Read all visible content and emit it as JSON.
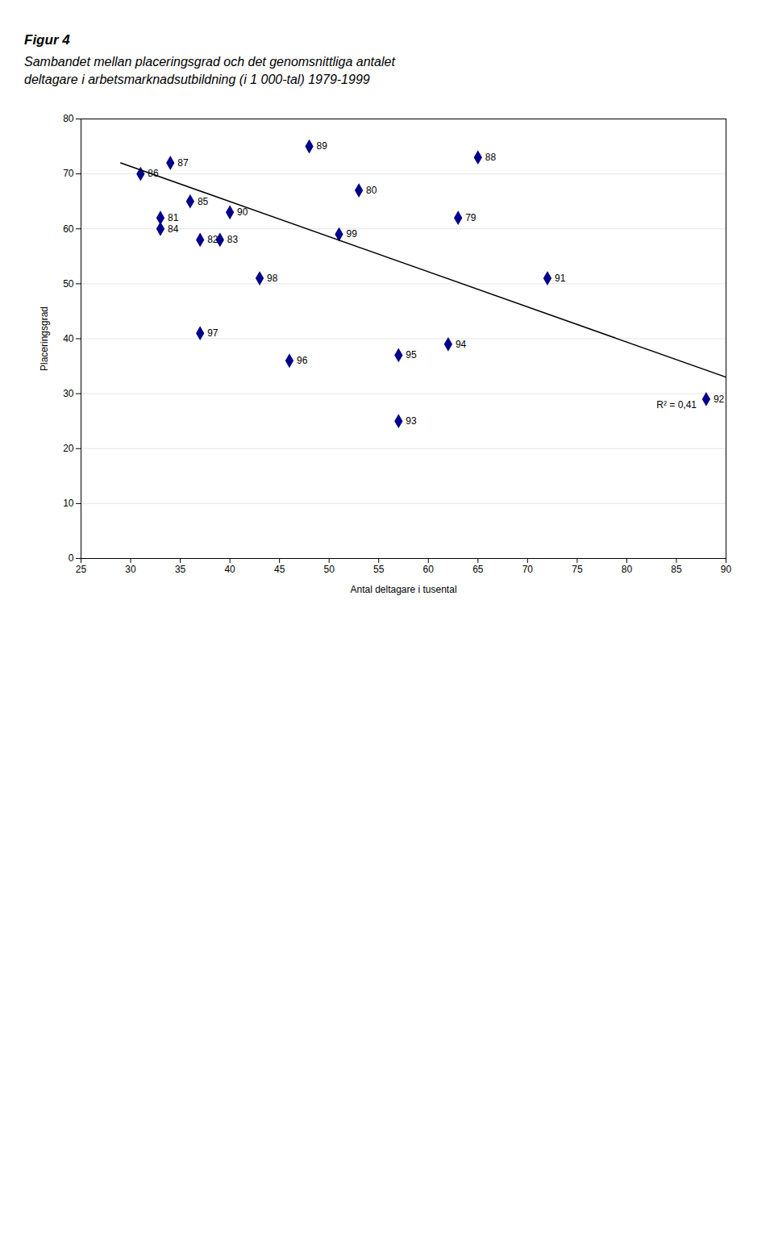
{
  "chart_data": {
    "type": "scatter",
    "title": "Figur 4",
    "subtitle": "Sambandet mellan placeringsgrad och det genomsnittliga antalet\ndeltagare i arbetsmarknadsutbildning (i 1 000-tal) 1979-1999",
    "x_label": "Antal deltagare i tusental",
    "y_label": "Placeringsgrad",
    "xlim": [
      25,
      90
    ],
    "ylim": [
      0,
      80
    ],
    "xticks": [
      25,
      30,
      35,
      40,
      45,
      50,
      55,
      60,
      65,
      70,
      75,
      80,
      85,
      90
    ],
    "yticks": [
      0,
      10,
      20,
      30,
      40,
      50,
      60,
      70,
      80
    ],
    "grid": "y",
    "series": [
      {
        "type": "scatter",
        "color": "#00008B",
        "marker": "diamond",
        "x": [
          63,
          53,
          33,
          37,
          39,
          33,
          36,
          31,
          34,
          65,
          48,
          40,
          72,
          88,
          57,
          62,
          57,
          46,
          37,
          43,
          51
        ],
        "values": [
          62,
          67,
          62,
          58,
          58,
          60,
          65,
          70,
          72,
          73,
          75,
          63,
          51,
          29,
          25,
          39,
          37,
          36,
          41,
          51,
          59
        ],
        "labels": [
          "79",
          "80",
          "81",
          "82",
          "83",
          "84",
          "85",
          "86",
          "87",
          "88",
          "89",
          "90",
          "91",
          "92",
          "93",
          "94",
          "95",
          "96",
          "97",
          "98",
          "99"
        ]
      },
      {
        "type": "line",
        "color": "#000000",
        "line_style": "solid",
        "x": [
          29,
          90
        ],
        "values": [
          72,
          33
        ]
      }
    ],
    "annotations": [
      {
        "text": "R² = 0,41",
        "x": 83,
        "y": 28
      }
    ]
  }
}
